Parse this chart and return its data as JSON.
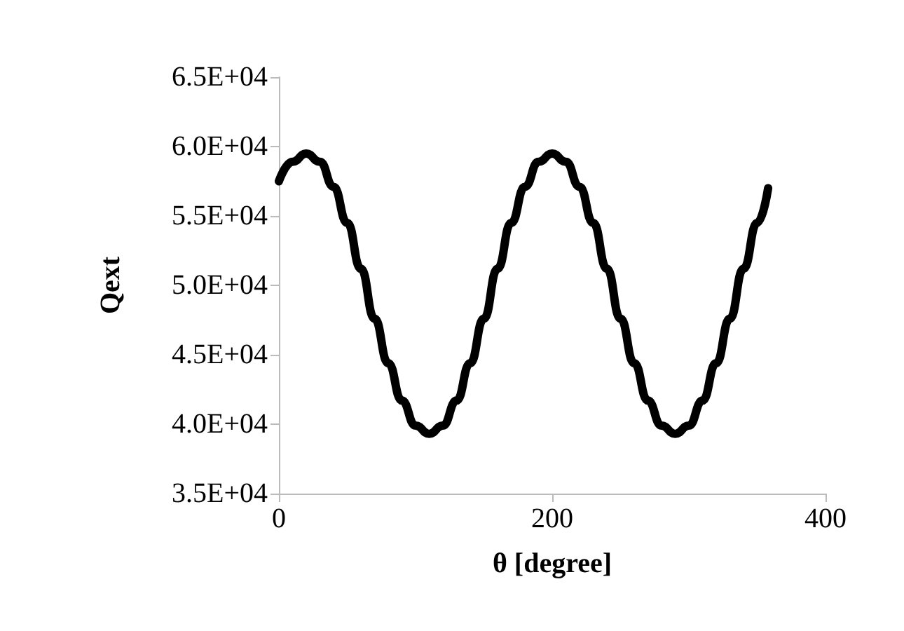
{
  "chart_data": {
    "type": "line",
    "xlabel": "θ [degree]",
    "ylabel": "Qext",
    "xlim": [
      0,
      400
    ],
    "xticks": [
      0,
      200,
      400
    ],
    "ylim": [
      35000,
      65000
    ],
    "yticks": [
      {
        "value": 35000,
        "label": "3.5E+04"
      },
      {
        "value": 40000,
        "label": "4.0E+04"
      },
      {
        "value": 45000,
        "label": "4.5E+04"
      },
      {
        "value": 50000,
        "label": "5.0E+04"
      },
      {
        "value": 55000,
        "label": "5.5E+04"
      },
      {
        "value": 60000,
        "label": "6.0E+04"
      },
      {
        "value": 65000,
        "label": "6.5E+04"
      }
    ],
    "grid": false,
    "marker": "none",
    "line_style": "solid",
    "x": [
      0,
      10,
      20,
      30,
      40,
      50,
      60,
      70,
      80,
      90,
      100,
      110,
      120,
      130,
      140,
      150,
      160,
      170,
      180,
      190,
      200,
      210,
      220,
      230,
      240,
      250,
      260,
      270,
      280,
      290,
      300,
      310,
      320,
      330,
      340,
      350,
      358
    ],
    "series": [
      {
        "color": "#000000",
        "values": [
          57500,
          58900,
          59500,
          58900,
          57100,
          54500,
          51200,
          47600,
          44400,
          41700,
          39900,
          39300,
          39900,
          41700,
          44400,
          47600,
          51200,
          54500,
          57100,
          58900,
          59500,
          58900,
          57100,
          54500,
          51200,
          47600,
          44400,
          41700,
          39900,
          39300,
          39900,
          41700,
          44400,
          47600,
          51200,
          54500,
          57000
        ]
      }
    ]
  }
}
